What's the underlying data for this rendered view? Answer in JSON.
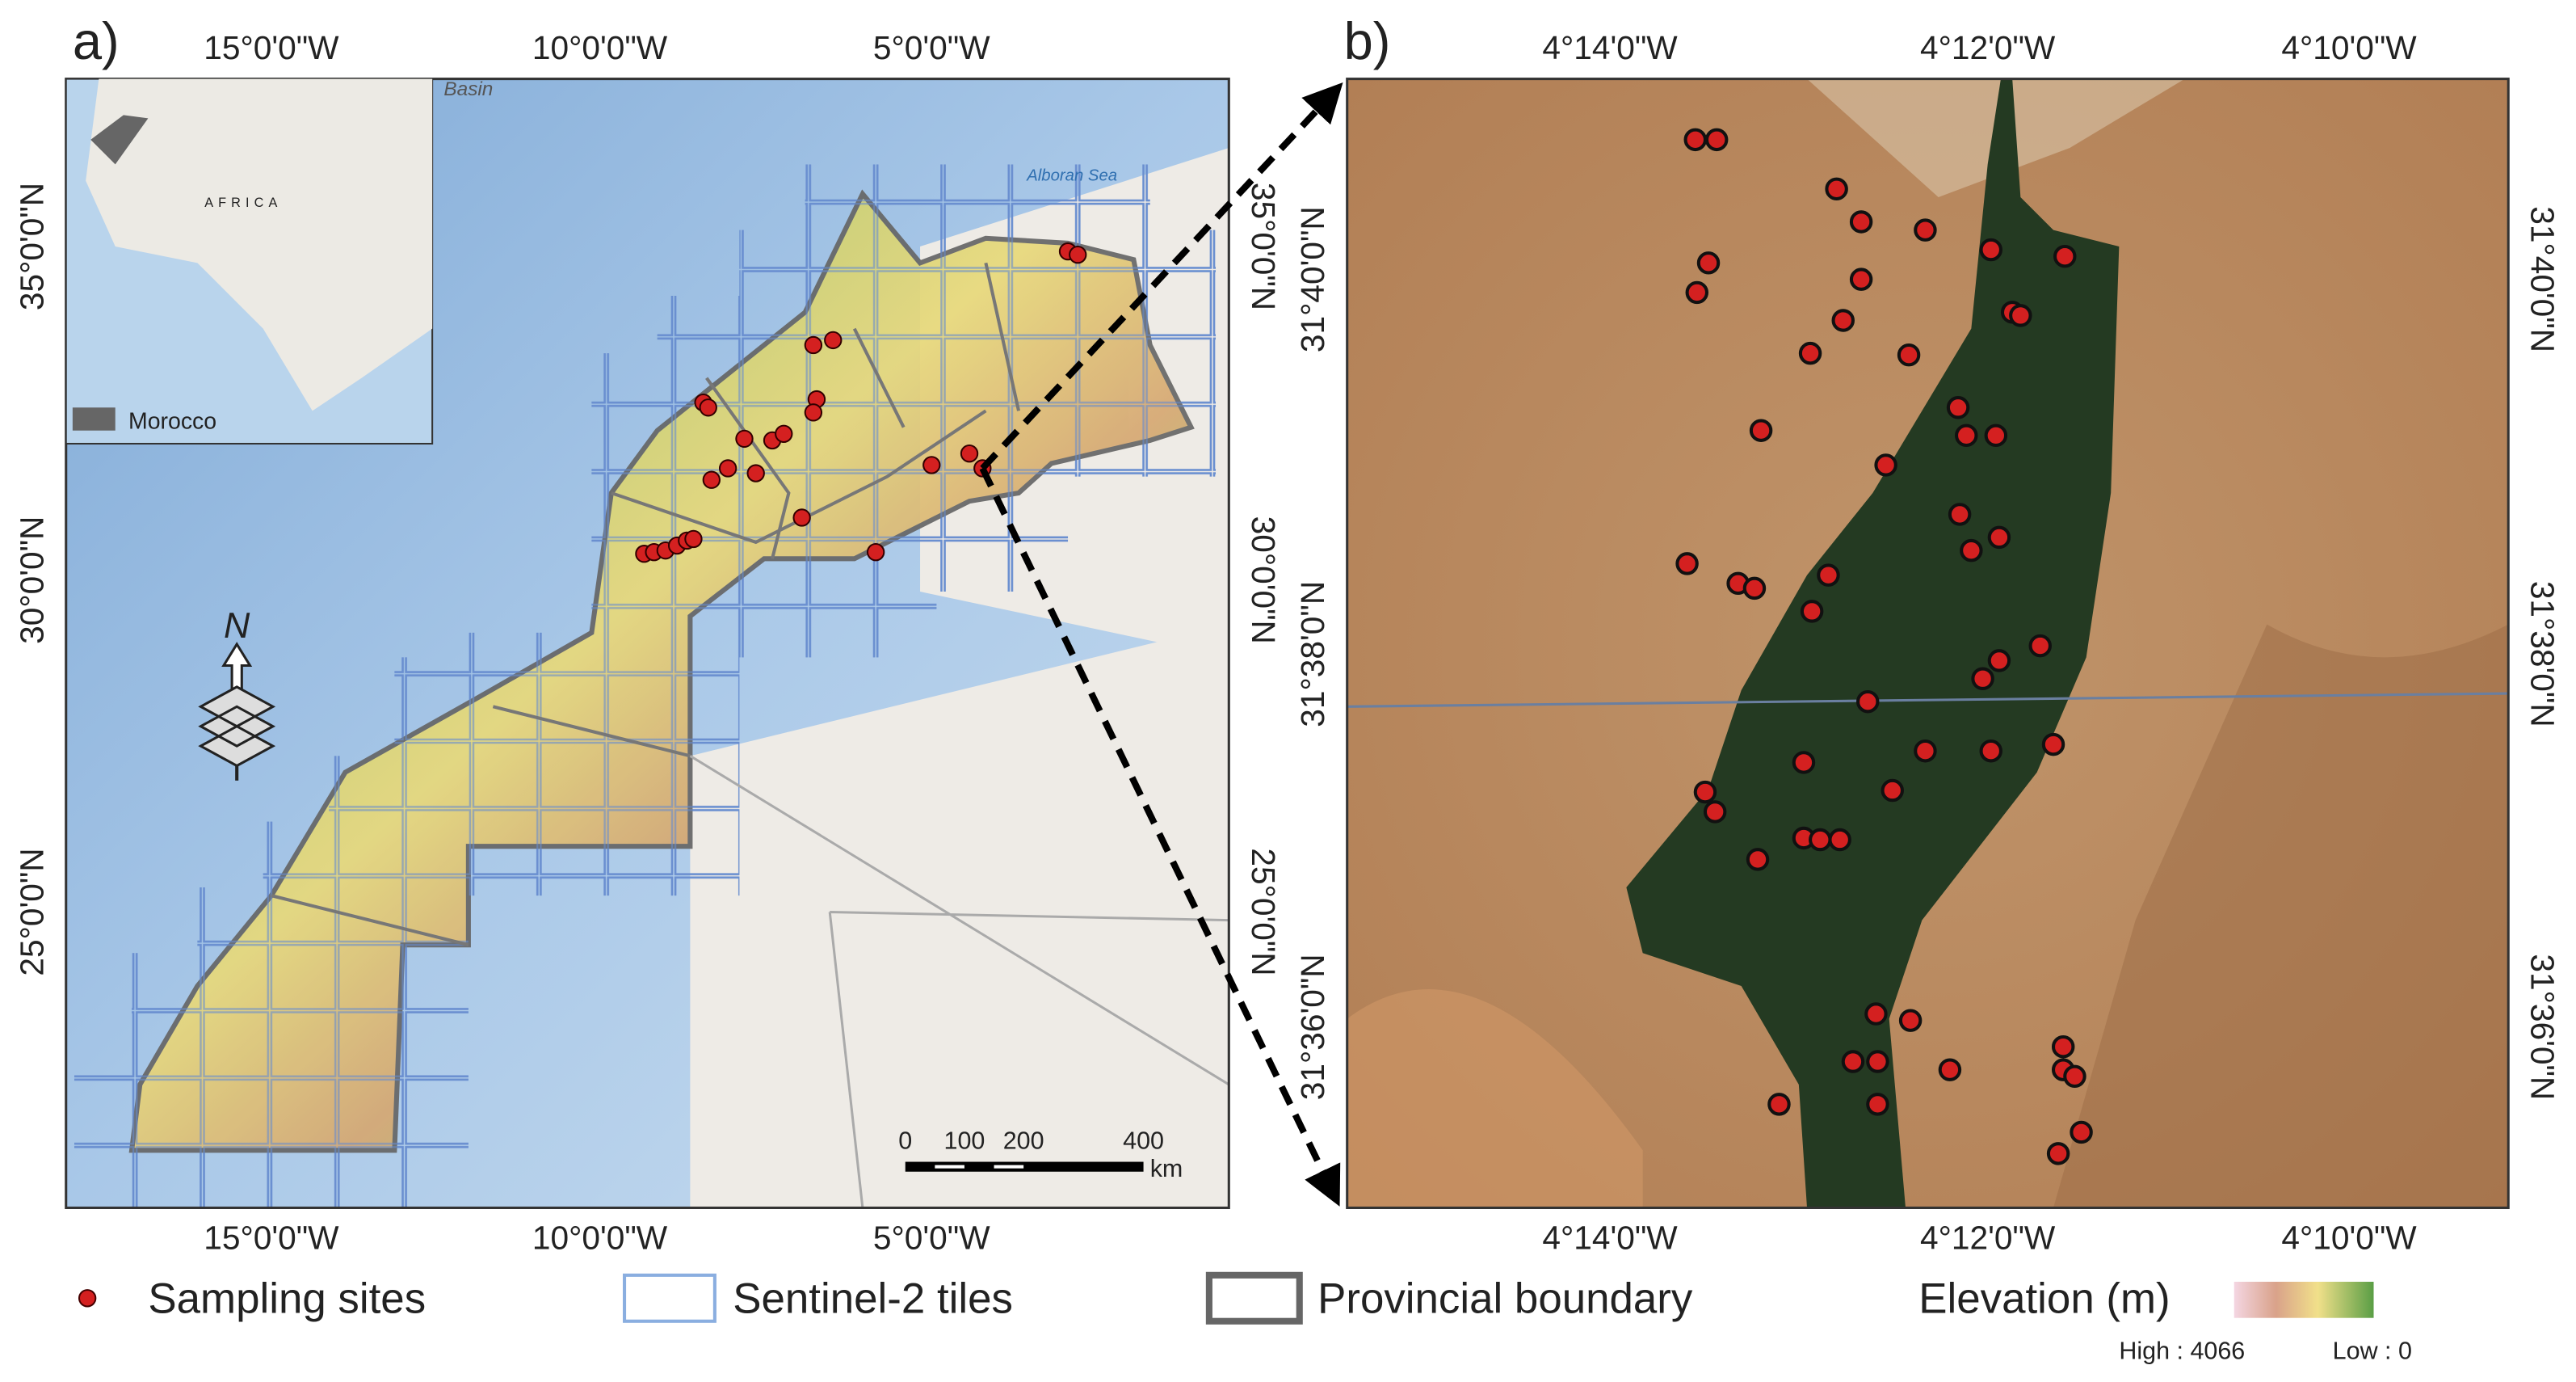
{
  "panel_a": {
    "label": "a)",
    "lon_ticks": [
      "15°0'0\"W",
      "10°0'0\"W",
      "5°0'0\"W"
    ],
    "lat_ticks": [
      "35°0'0\"N",
      "30°0'0\"N",
      "25°0'0\"N"
    ],
    "inset": {
      "continent": "AFRICA",
      "country": "Morocco"
    },
    "sea_label": "Alboran Sea",
    "basin_label": "Basin",
    "north": "N",
    "scale_bar": {
      "ticks": [
        "0",
        "100",
        "200",
        "400"
      ],
      "unit": "km"
    }
  },
  "panel_b": {
    "label": "b)",
    "lon_ticks": [
      "4°14'0\"W",
      "4°12'0\"W",
      "4°10'0\"W"
    ],
    "lat_ticks": [
      "31°40'0\"N",
      "31°38'0\"N",
      "31°36'0\"N"
    ]
  },
  "legend": {
    "sampling_sites": "Sampling sites",
    "tiles": "Sentinel-2 tiles",
    "boundary": "Provincial boundary",
    "elevation": "Elevation (m)",
    "high": "High : 4066",
    "low": "Low : 0"
  }
}
